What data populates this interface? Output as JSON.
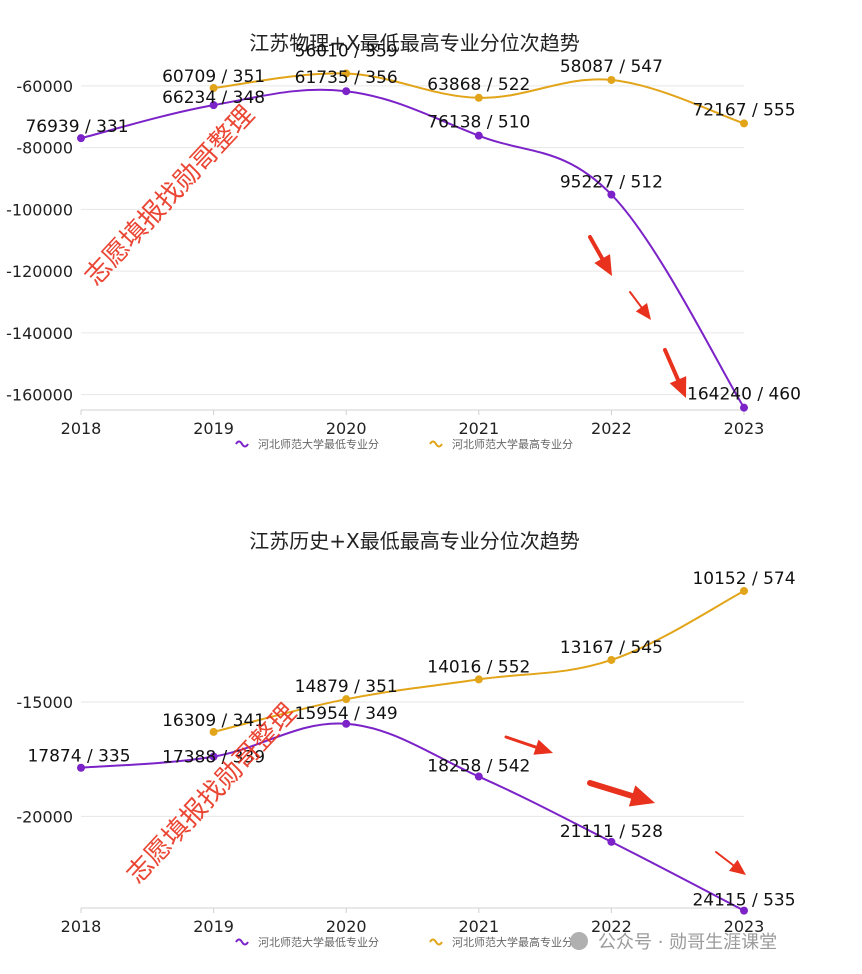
{
  "chart_data": [
    {
      "type": "line",
      "title": "江苏物理+X最低最高专业分位次趋势",
      "x": [
        "2018",
        "2019",
        "2020",
        "2021",
        "2022",
        "2023"
      ],
      "ylim": [
        -165000,
        -50000
      ],
      "yticks": [
        "-60000",
        "-80000",
        "-100000",
        "-120000",
        "-140000",
        "-160000"
      ],
      "ytick_values": [
        -60000,
        -80000,
        -100000,
        -120000,
        -140000,
        -160000
      ],
      "grid": true,
      "legend_position": "bottom",
      "series": [
        {
          "name": "河北师范大学最低专业分",
          "color": "#7b22c8",
          "values": [
            -76939,
            -66234,
            -61735,
            -76138,
            -95227,
            -164240
          ],
          "labels": [
            "76939 / 331",
            "66234 / 348",
            "61735 / 356",
            "76138 / 510",
            "95227 / 512",
            "164240 / 460"
          ]
        },
        {
          "name": "河北师范大学最高专业分",
          "color": "#e2a418",
          "values": [
            null,
            -60709,
            -56010,
            -63868,
            -58087,
            -72167
          ],
          "labels": [
            "",
            "60709 / 351",
            "56010 / 359",
            "63868 / 522",
            "58087 / 547",
            "72167 / 555"
          ]
        }
      ]
    },
    {
      "type": "line",
      "title": "江苏历史+X最低最高专业分位次趋势",
      "x": [
        "2018",
        "2019",
        "2020",
        "2021",
        "2022",
        "2023"
      ],
      "ylim": [
        -24000,
        -8800
      ],
      "yticks": [
        "-15000",
        "-20000"
      ],
      "ytick_values": [
        -15000,
        -20000
      ],
      "grid": true,
      "legend_position": "bottom",
      "series": [
        {
          "name": "河北师范大学最低专业分",
          "color": "#7b22c8",
          "values": [
            -17874,
            -17388,
            -15954,
            -18258,
            -21111,
            -24115
          ],
          "labels": [
            "17874 / 335",
            "17388 / 339",
            "15954 / 349",
            "18258 / 542",
            "21111 / 528",
            "24115 / 535"
          ]
        },
        {
          "name": "河北师范大学最高专业分",
          "color": "#e2a418",
          "values": [
            null,
            -16309,
            -14879,
            -14016,
            -13167,
            -10152
          ],
          "labels": [
            "",
            "16309 / 341",
            "14879 / 351",
            "14016 / 552",
            "13167 / 545",
            "10152 / 574"
          ]
        }
      ]
    }
  ],
  "watermarks": {
    "text": "志愿填报找勋哥整理",
    "credit": "公众号 · 勋哥生涯课堂",
    "arrow_color": "#e8321e"
  }
}
